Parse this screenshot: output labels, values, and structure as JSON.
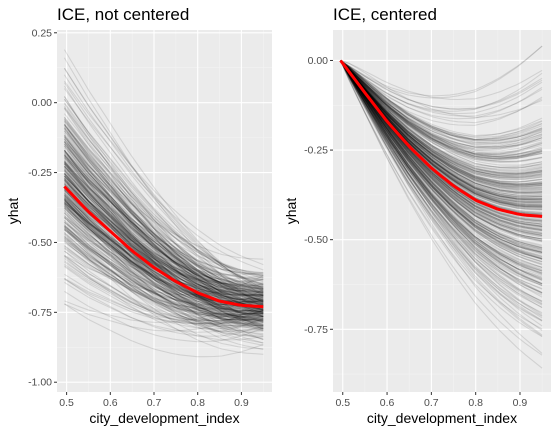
{
  "chart_data": [
    {
      "type": "line",
      "title": "ICE, not centered",
      "xlabel": "city_development_index",
      "ylabel": "yhat",
      "xlim": [
        0.478,
        0.97
      ],
      "ylim": [
        -1.035,
        0.26
      ],
      "x_ticks": [
        0.5,
        0.6,
        0.7,
        0.8,
        0.9
      ],
      "x_tick_labels": [
        "0.5",
        "0.6",
        "0.7",
        "0.8",
        "0.9"
      ],
      "y_ticks": [
        -1.0,
        -0.75,
        -0.5,
        -0.25,
        0.0,
        0.25
      ],
      "y_tick_labels": [
        "-1.00",
        "-0.75",
        "-0.50",
        "-0.25",
        "0.00",
        "0.25"
      ],
      "grid": true,
      "x_range": [
        0.495,
        0.95
      ],
      "average_curve": {
        "color": "#ff0000",
        "x": [
          0.495,
          0.55,
          0.6,
          0.65,
          0.7,
          0.75,
          0.8,
          0.85,
          0.9,
          0.95
        ],
        "y": [
          -0.3,
          -0.39,
          -0.46,
          -0.53,
          -0.59,
          -0.64,
          -0.68,
          -0.71,
          -0.725,
          -0.73
        ]
      },
      "individual_curves": {
        "color": "#000000",
        "count": 320,
        "start_y_range": [
          -0.72,
          0.19
        ],
        "end_y_range": [
          -0.9,
          -0.56
        ]
      }
    },
    {
      "type": "line",
      "title": "ICE, centered",
      "xlabel": "city_development_index",
      "ylabel": "yhat",
      "xlim": [
        0.478,
        0.97
      ],
      "ylim": [
        -0.925,
        0.085
      ],
      "x_ticks": [
        0.5,
        0.6,
        0.7,
        0.8,
        0.9
      ],
      "x_tick_labels": [
        "0.5",
        "0.6",
        "0.7",
        "0.8",
        "0.9"
      ],
      "y_ticks": [
        -0.75,
        -0.5,
        -0.25,
        0.0
      ],
      "y_tick_labels": [
        "-0.75",
        "-0.50",
        "-0.25",
        "0.00"
      ],
      "grid": true,
      "x_range": [
        0.495,
        0.95
      ],
      "average_curve": {
        "color": "#ff0000",
        "x": [
          0.495,
          0.55,
          0.6,
          0.65,
          0.7,
          0.75,
          0.8,
          0.85,
          0.9,
          0.95
        ],
        "y": [
          0.0,
          -0.09,
          -0.17,
          -0.24,
          -0.3,
          -0.35,
          -0.39,
          -0.415,
          -0.43,
          -0.435
        ]
      },
      "individual_curves": {
        "color": "#000000",
        "count": 320,
        "start_y": 0.0,
        "end_y_range": [
          -0.91,
          0.04
        ]
      }
    }
  ]
}
